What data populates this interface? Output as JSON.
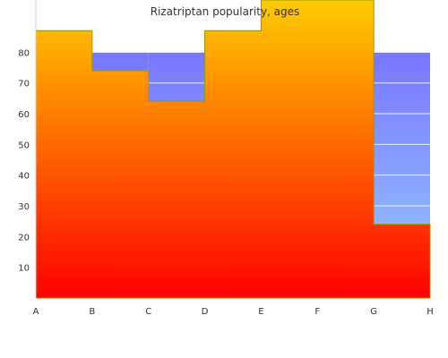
{
  "chart_data": {
    "type": "area",
    "title": "Rizatriptan popularity, ages",
    "xlabel": "",
    "ylabel": "",
    "categories": [
      "A",
      "B",
      "C",
      "D",
      "E",
      "F",
      "G",
      "H"
    ],
    "ylim": [
      0,
      97
    ],
    "yticks": [
      10,
      20,
      30,
      40,
      50,
      60,
      70,
      80
    ],
    "grid": true,
    "legend": "none",
    "series": [
      {
        "style": "step",
        "values": [
          87,
          74,
          64,
          87,
          97,
          97,
          24,
          24
        ],
        "fill": "gradient",
        "colors": {
          "top": "#ffcc00",
          "bottom": "#ff0000",
          "edge": "#999900"
        }
      },
      {
        "style": "bar",
        "values": [
          80,
          80,
          80,
          80,
          80,
          80,
          80,
          80
        ],
        "fill": "gradient",
        "colors": {
          "top": "#7777ff",
          "bottom": "#99ccff"
        }
      }
    ]
  }
}
